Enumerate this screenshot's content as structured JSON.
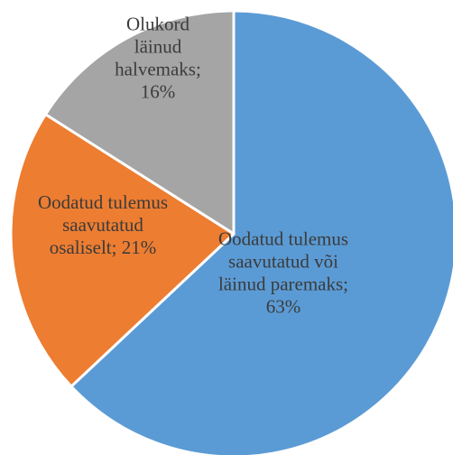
{
  "chart_data": {
    "type": "pie",
    "title": "",
    "slices": [
      {
        "label_lines": [
          "Oodatud tulemus",
          "saavutatud või",
          "läinud  paremaks;",
          "63%"
        ],
        "value": 63,
        "color": "#5B9BD5"
      },
      {
        "label_lines": [
          "Oodatud tulemus",
          "saavutatud",
          "osaliselt;  21%"
        ],
        "value": 21,
        "color": "#ED7D31"
      },
      {
        "label_lines": [
          "Olukord",
          "läinud",
          "halvemaks;",
          "16%"
        ],
        "value": 16,
        "color": "#A5A5A5"
      }
    ],
    "start_angle_deg": 0,
    "direction": "clockwise",
    "legend": "none",
    "data_labels": "inside"
  }
}
